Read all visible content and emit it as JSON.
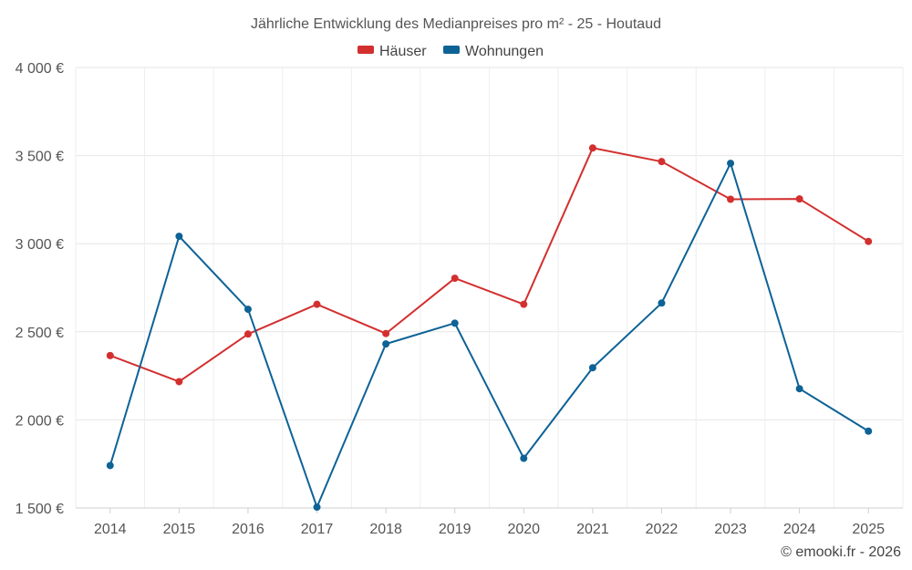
{
  "chart_data": {
    "type": "line",
    "title": "Jährliche Entwicklung des Medianpreises pro m² - 25 - Houtaud",
    "categories": [
      "2014",
      "2015",
      "2016",
      "2017",
      "2018",
      "2019",
      "2020",
      "2021",
      "2022",
      "2023",
      "2024",
      "2025"
    ],
    "series": [
      {
        "name": "Häuser",
        "color": "#d32f2f",
        "values": [
          2365,
          2217,
          2487,
          2656,
          2490,
          2804,
          2656,
          3543,
          3466,
          3252,
          3254,
          3013
        ]
      },
      {
        "name": "Wohnungen",
        "color": "#0d6296",
        "values": [
          1741,
          3042,
          2628,
          1505,
          2431,
          2549,
          1782,
          2296,
          2663,
          3456,
          2177,
          1936
        ]
      }
    ],
    "ylim": [
      1500,
      4000
    ],
    "yticks": [
      1500,
      2000,
      2500,
      3000,
      3500,
      4000
    ],
    "ytick_labels": [
      "1 500 €",
      "2 000 €",
      "2 500 €",
      "3 000 €",
      "3 500 €",
      "4 000 €"
    ],
    "xlabel": "",
    "ylabel": "",
    "grid": true,
    "legend_position": "top-center"
  },
  "credit": "© emooki.fr - 2026"
}
